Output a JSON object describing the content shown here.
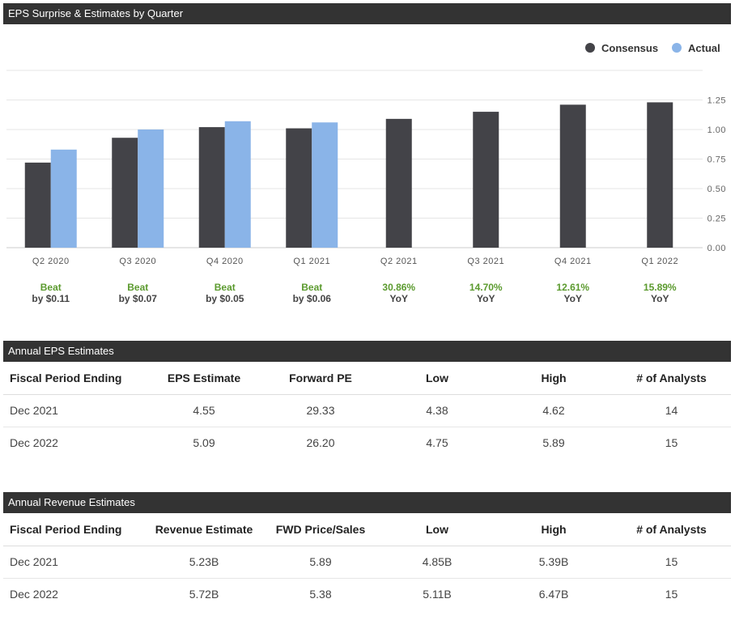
{
  "chart_section": {
    "title": "EPS Surprise & Estimates by Quarter"
  },
  "chart_data": {
    "type": "bar",
    "title": "EPS Surprise & Estimates by Quarter",
    "categories": [
      "Q2 2020",
      "Q3 2020",
      "Q4 2020",
      "Q1 2021",
      "Q2 2021",
      "Q3 2021",
      "Q4 2021",
      "Q1 2022"
    ],
    "series": [
      {
        "name": "Consensus",
        "color": "#434348",
        "values": [
          0.72,
          0.93,
          1.02,
          1.01,
          1.09,
          1.15,
          1.21,
          1.23
        ]
      },
      {
        "name": "Actual",
        "color": "#8ab4e8",
        "values": [
          0.83,
          1.0,
          1.07,
          1.06,
          null,
          null,
          null,
          null
        ]
      }
    ],
    "yticks": [
      "0.00",
      "0.25",
      "0.50",
      "0.75",
      "1.00",
      "1.25"
    ],
    "ylim": [
      0,
      1.5
    ],
    "legend_position": "top-right",
    "annotations": [
      {
        "top": "Beat",
        "bottom": "by $0.11"
      },
      {
        "top": "Beat",
        "bottom": "by $0.07"
      },
      {
        "top": "Beat",
        "bottom": "by $0.05"
      },
      {
        "top": "Beat",
        "bottom": "by $0.06"
      },
      {
        "top": "30.86%",
        "bottom": "YoY"
      },
      {
        "top": "14.70%",
        "bottom": "YoY"
      },
      {
        "top": "12.61%",
        "bottom": "YoY"
      },
      {
        "top": "15.89%",
        "bottom": "YoY"
      }
    ]
  },
  "eps_section": {
    "title": "Annual EPS Estimates",
    "headers": [
      "Fiscal Period Ending",
      "EPS Estimate",
      "Forward PE",
      "Low",
      "High",
      "# of Analysts"
    ],
    "rows": [
      [
        "Dec 2021",
        "4.55",
        "29.33",
        "4.38",
        "4.62",
        "14"
      ],
      [
        "Dec 2022",
        "5.09",
        "26.20",
        "4.75",
        "5.89",
        "15"
      ]
    ]
  },
  "revenue_section": {
    "title": "Annual Revenue Estimates",
    "headers": [
      "Fiscal Period Ending",
      "Revenue Estimate",
      "FWD Price/Sales",
      "Low",
      "High",
      "# of Analysts"
    ],
    "rows": [
      [
        "Dec 2021",
        "5.23B",
        "5.89",
        "4.85B",
        "5.39B",
        "15"
      ],
      [
        "Dec 2022",
        "5.72B",
        "5.38",
        "5.11B",
        "6.47B",
        "15"
      ]
    ]
  }
}
